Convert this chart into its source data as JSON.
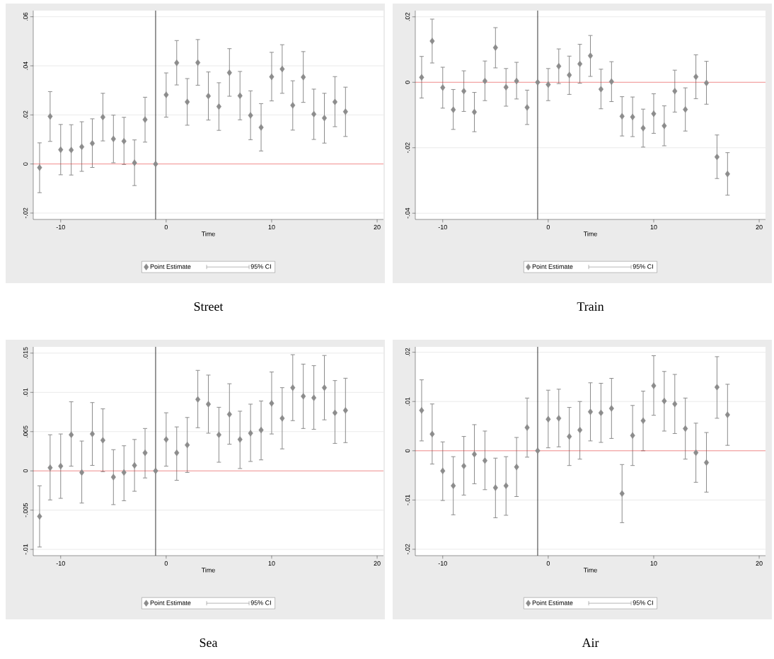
{
  "chart_data": [
    {
      "type": "scatter",
      "title": "Street",
      "xlabel": "Time",
      "x": [
        -12,
        -11,
        -10,
        -9,
        -8,
        -7,
        -6,
        -5,
        -4,
        -3,
        -2,
        -1,
        0,
        1,
        2,
        3,
        4,
        5,
        6,
        7,
        8,
        9,
        10,
        11,
        12,
        13,
        14,
        15,
        16,
        17
      ],
      "series": [
        {
          "name": "Point Estimate",
          "color": "#8c8c8c",
          "values": [
            -0.0015,
            0.0194,
            0.0058,
            0.0057,
            0.007,
            0.0084,
            0.0191,
            0.0102,
            0.0093,
            0.0005,
            0.0181,
            0,
            0.0282,
            0.0412,
            0.0253,
            0.0413,
            0.0277,
            0.0234,
            0.0372,
            0.0278,
            0.0198,
            0.0149,
            0.0355,
            0.0387,
            0.0239,
            0.0354,
            0.0203,
            0.0187,
            0.0253,
            0.0213
          ],
          "errors": [
            [
              -0.0117,
              0.0086
            ],
            [
              0.0092,
              0.0295
            ],
            [
              -0.0044,
              0.0161
            ],
            [
              -0.0045,
              0.016
            ],
            [
              -0.003,
              0.0172
            ],
            [
              -0.0014,
              0.0184
            ],
            [
              0.0094,
              0.0288
            ],
            [
              0.0005,
              0.0199
            ],
            [
              -0.0002,
              0.019
            ],
            [
              -0.0088,
              0.0098
            ],
            [
              0.0089,
              0.0272
            ],
            null,
            [
              0.0191,
              0.0371
            ],
            [
              0.0322,
              0.0503
            ],
            [
              0.0158,
              0.0348
            ],
            [
              0.0321,
              0.0507
            ],
            [
              0.0179,
              0.0375
            ],
            [
              0.0137,
              0.0331
            ],
            [
              0.0276,
              0.047
            ],
            [
              0.018,
              0.0377
            ],
            [
              0.0099,
              0.0298
            ],
            [
              0.0053,
              0.0246
            ],
            [
              0.0257,
              0.0455
            ],
            [
              0.0288,
              0.0486
            ],
            [
              0.0138,
              0.0339
            ],
            [
              0.0251,
              0.0458
            ],
            [
              0.01,
              0.0305
            ],
            [
              0.0085,
              0.0288
            ],
            [
              0.0152,
              0.0356
            ],
            [
              0.0112,
              0.0313
            ]
          ]
        }
      ],
      "xlim": [
        -12.6,
        20.6
      ],
      "ylim": [
        -0.0226,
        0.0625
      ],
      "xticks": [
        -10,
        0,
        10,
        20
      ],
      "yticks": [
        {
          "value": -0.02,
          "label": "-.02"
        },
        0,
        {
          "value": 0.02,
          "label": ".02"
        },
        {
          "value": 0.04,
          "label": ".04"
        },
        {
          "value": 0.06,
          "label": ".06"
        }
      ],
      "grid": "y",
      "legend": "bottom",
      "marker": "diamond",
      "ref_lines": [
        {
          "axis": "y",
          "value": 0,
          "color": "#ff0000"
        },
        {
          "axis": "x",
          "value": -1,
          "color": "#000000"
        }
      ],
      "annotations": [
        "95% CI"
      ]
    },
    {
      "type": "scatter",
      "title": "Train",
      "xlabel": "Time",
      "x": [
        -12,
        -11,
        -10,
        -9,
        -8,
        -7,
        -6,
        -5,
        -4,
        -3,
        -2,
        -1,
        0,
        1,
        2,
        3,
        4,
        5,
        6,
        7,
        8,
        9,
        10,
        11,
        12,
        13,
        14,
        15,
        16,
        17
      ],
      "series": [
        {
          "name": "Point Estimate",
          "color": "#8c8c8c",
          "values": [
            0.0015,
            0.0126,
            -0.0016,
            -0.0084,
            -0.0027,
            -0.0091,
            0.0004,
            0.0106,
            -0.0015,
            0.0004,
            -0.0077,
            0,
            -0.0007,
            0.0049,
            0.0022,
            0.0056,
            0.0081,
            -0.0021,
            0.0002,
            -0.0104,
            -0.0106,
            -0.014,
            -0.0096,
            -0.0133,
            -0.0027,
            -0.0083,
            0.0017,
            -0.0002,
            -0.0228,
            -0.028
          ],
          "errors": [
            [
              -0.0048,
              0.0079
            ],
            [
              0.0059,
              0.0193
            ],
            [
              -0.0079,
              0.0046
            ],
            [
              -0.0144,
              -0.0022
            ],
            [
              -0.0089,
              0.0035
            ],
            [
              -0.0151,
              -0.0031
            ],
            [
              -0.0056,
              0.0065
            ],
            [
              0.0044,
              0.0167
            ],
            [
              -0.0073,
              0.0042
            ],
            [
              -0.0051,
              0.0061
            ],
            [
              -0.0129,
              -0.0024
            ],
            null,
            [
              -0.0056,
              0.0042
            ],
            [
              -0.0004,
              0.0102
            ],
            [
              -0.0037,
              0.008
            ],
            [
              -0.0003,
              0.0116
            ],
            [
              0.0018,
              0.0143
            ],
            [
              -0.0081,
              0.004
            ],
            [
              -0.0059,
              0.0063
            ],
            [
              -0.0164,
              -0.0044
            ],
            [
              -0.0166,
              -0.0045
            ],
            [
              -0.0198,
              -0.0082
            ],
            [
              -0.0156,
              -0.0035
            ],
            [
              -0.0194,
              -0.0072
            ],
            [
              -0.0091,
              0.0037
            ],
            [
              -0.0149,
              -0.0017
            ],
            [
              -0.005,
              0.0084
            ],
            [
              -0.0067,
              0.0064
            ],
            [
              -0.0294,
              -0.0161
            ],
            [
              -0.0345,
              -0.0215
            ]
          ]
        }
      ],
      "xlim": [
        -12.6,
        20.6
      ],
      "ylim": [
        -0.0419,
        0.0219
      ],
      "xticks": [
        -10,
        0,
        10,
        20
      ],
      "yticks": [
        {
          "value": -0.04,
          "label": "-.04"
        },
        {
          "value": -0.02,
          "label": "-.02"
        },
        0,
        {
          "value": 0.02,
          "label": ".02"
        }
      ],
      "grid": "y",
      "legend": "bottom",
      "marker": "diamond",
      "ref_lines": [
        {
          "axis": "y",
          "value": 0,
          "color": "#ff0000"
        },
        {
          "axis": "x",
          "value": -1,
          "color": "#000000"
        }
      ],
      "annotations": [
        "95% CI"
      ]
    },
    {
      "type": "scatter",
      "title": "Sea",
      "xlabel": "Time",
      "x": [
        -12,
        -11,
        -10,
        -9,
        -8,
        -7,
        -6,
        -5,
        -4,
        -3,
        -2,
        -1,
        0,
        1,
        2,
        3,
        4,
        5,
        6,
        7,
        8,
        9,
        10,
        11,
        12,
        13,
        14,
        15,
        16,
        17
      ],
      "series": [
        {
          "name": "Point Estimate",
          "color": "#8c8c8c",
          "values": [
            -0.0058,
            0.0004,
            0.0006,
            0.0046,
            -0.0002,
            0.0047,
            0.0039,
            -0.0008,
            -0.0002,
            0.0007,
            0.0023,
            0,
            0.004,
            0.0023,
            0.0033,
            0.0091,
            0.0085,
            0.0046,
            0.0072,
            0.004,
            0.0048,
            0.0052,
            0.0086,
            0.0067,
            0.0106,
            0.0095,
            0.0093,
            0.0106,
            0.0074,
            0.0077
          ],
          "errors": [
            [
              -0.0097,
              -0.0019
            ],
            [
              -0.0037,
              0.0046
            ],
            [
              -0.0035,
              0.0047
            ],
            [
              0.0006,
              0.0088
            ],
            [
              -0.0041,
              0.0038
            ],
            [
              0.0007,
              0.0087
            ],
            [
              -0.0001,
              0.0079
            ],
            [
              -0.0043,
              0.0027
            ],
            [
              -0.0038,
              0.0032
            ],
            [
              -0.0026,
              0.004
            ],
            [
              -0.0009,
              0.0054
            ],
            null,
            [
              0.0006,
              0.0074
            ],
            [
              -0.0012,
              0.0056
            ],
            [
              -0.0002,
              0.0068
            ],
            [
              0.0055,
              0.0128
            ],
            [
              0.0048,
              0.0122
            ],
            [
              0.0011,
              0.0081
            ],
            [
              0.0034,
              0.0111
            ],
            [
              0.0003,
              0.0076
            ],
            [
              0.0012,
              0.0085
            ],
            [
              0.0014,
              0.0089
            ],
            [
              0.0047,
              0.0126
            ],
            [
              0.0028,
              0.0106
            ],
            [
              0.0064,
              0.0148
            ],
            [
              0.0054,
              0.0136
            ],
            [
              0.0053,
              0.0134
            ],
            [
              0.0065,
              0.0147
            ],
            [
              0.0035,
              0.0115
            ],
            [
              0.0036,
              0.0118
            ]
          ]
        }
      ],
      "xlim": [
        -12.6,
        20.6
      ],
      "ylim": [
        -0.0108,
        0.0158
      ],
      "xticks": [
        -10,
        0,
        10,
        20
      ],
      "yticks": [
        {
          "value": -0.01,
          "label": "-.01"
        },
        {
          "value": -0.005,
          "label": "-.005"
        },
        0,
        {
          "value": 0.005,
          "label": ".005"
        },
        {
          "value": 0.01,
          "label": ".01"
        },
        {
          "value": 0.015,
          "label": ".015"
        }
      ],
      "grid": "y",
      "legend": "bottom",
      "marker": "diamond",
      "ref_lines": [
        {
          "axis": "y",
          "value": 0,
          "color": "#ff0000"
        },
        {
          "axis": "x",
          "value": -1,
          "color": "#000000"
        }
      ],
      "annotations": [
        "95% CI"
      ]
    },
    {
      "type": "scatter",
      "title": "Air",
      "xlabel": "Time",
      "x": [
        -12,
        -11,
        -10,
        -9,
        -8,
        -7,
        -6,
        -5,
        -4,
        -3,
        -2,
        -1,
        0,
        1,
        2,
        3,
        4,
        5,
        6,
        7,
        8,
        9,
        10,
        11,
        12,
        13,
        14,
        15,
        16,
        17
      ],
      "series": [
        {
          "name": "Point Estimate",
          "color": "#8c8c8c",
          "values": [
            0.0082,
            0.0034,
            -0.0041,
            -0.0071,
            -0.0031,
            -0.0007,
            -0.002,
            -0.0075,
            -0.0071,
            -0.0033,
            0.0047,
            0,
            0.0064,
            0.0066,
            0.0029,
            0.0042,
            0.0079,
            0.0077,
            0.0086,
            -0.0087,
            0.0031,
            0.0061,
            0.0132,
            0.0101,
            0.0095,
            0.0045,
            -0.0004,
            -0.0024,
            0.0129,
            0.0073
          ],
          "errors": [
            [
              0.002,
              0.0144
            ],
            [
              -0.0027,
              0.0095
            ],
            [
              -0.0101,
              0.0018
            ],
            [
              -0.013,
              -0.0012
            ],
            [
              -0.009,
              0.0029
            ],
            [
              -0.0067,
              0.0053
            ],
            [
              -0.0079,
              0.004
            ],
            [
              -0.0136,
              -0.0015
            ],
            [
              -0.0131,
              -0.0012
            ],
            [
              -0.0093,
              0.0027
            ],
            [
              -0.0013,
              0.0107
            ],
            null,
            [
              0.0006,
              0.0123
            ],
            [
              0.0008,
              0.0125
            ],
            [
              -0.003,
              0.0088
            ],
            [
              -0.0017,
              0.01
            ],
            [
              0.002,
              0.0138
            ],
            [
              0.0017,
              0.0137
            ],
            [
              0.0025,
              0.0147
            ],
            [
              -0.0146,
              -0.0028
            ],
            [
              -0.003,
              0.0092
            ],
            [
              0,
              0.0121
            ],
            [
              0.0072,
              0.0193
            ],
            [
              0.004,
              0.0161
            ],
            [
              0.0035,
              0.0155
            ],
            [
              -0.0017,
              0.0107
            ],
            [
              -0.0064,
              0.0056
            ],
            [
              -0.0084,
              0.0037
            ],
            [
              0.0066,
              0.0191
            ],
            [
              0.0011,
              0.0135
            ]
          ]
        }
      ],
      "xlim": [
        -12.6,
        20.6
      ],
      "ylim": [
        -0.0213,
        0.0211
      ],
      "xticks": [
        -10,
        0,
        10,
        20
      ],
      "yticks": [
        {
          "value": -0.02,
          "label": "-.02"
        },
        {
          "value": -0.01,
          "label": "-.01"
        },
        0,
        {
          "value": 0.01,
          "label": ".01"
        },
        {
          "value": 0.02,
          "label": ".02"
        }
      ],
      "grid": "y",
      "legend": "bottom",
      "marker": "diamond",
      "ref_lines": [
        {
          "axis": "y",
          "value": 0,
          "color": "#ff0000"
        },
        {
          "axis": "x",
          "value": -1,
          "color": "#000000"
        }
      ],
      "annotations": [
        "95% CI"
      ]
    }
  ]
}
